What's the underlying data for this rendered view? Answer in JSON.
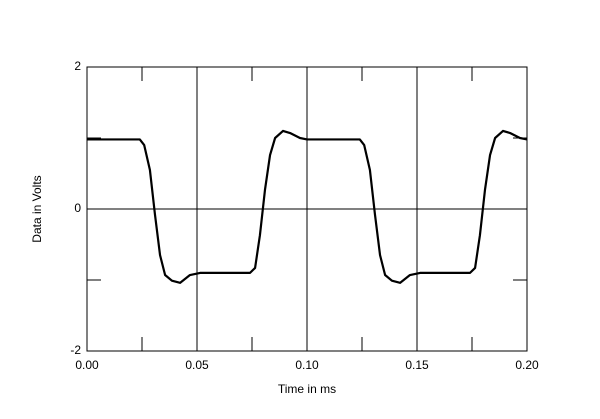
{
  "chart_data": {
    "type": "line",
    "x_label": "Time in ms",
    "y_label": "Data in Volts",
    "x": [
      0.0,
      0.024,
      0.026,
      0.0286,
      0.0309,
      0.0332,
      0.0355,
      0.0386,
      0.0423,
      0.0468,
      0.0514,
      0.0741,
      0.0764,
      0.0786,
      0.0809,
      0.0832,
      0.0855,
      0.0891,
      0.0923,
      0.0968,
      0.1,
      0.124,
      0.126,
      0.1286,
      0.1309,
      0.1332,
      0.1355,
      0.1386,
      0.1423,
      0.1468,
      0.1514,
      0.1741,
      0.1764,
      0.1786,
      0.1809,
      0.1832,
      0.1855,
      0.1891,
      0.1923,
      0.1968,
      0.2
    ],
    "series": [
      {
        "color": "#000000",
        "values": [
          0.98,
          0.98,
          0.9,
          0.55,
          -0.08,
          -0.65,
          -0.93,
          -1.01,
          -1.04,
          -0.93,
          -0.9,
          -0.9,
          -0.83,
          -0.37,
          0.27,
          0.76,
          1.0,
          1.1,
          1.07,
          1.0,
          0.98,
          0.98,
          0.9,
          0.55,
          -0.08,
          -0.65,
          -0.93,
          -1.01,
          -1.04,
          -0.93,
          -0.9,
          -0.9,
          -0.83,
          -0.37,
          0.27,
          0.76,
          1.0,
          1.1,
          1.07,
          1.0,
          0.98
        ]
      }
    ],
    "xlim": [
      0,
      0.2
    ],
    "xticks": [
      {
        "value": 0,
        "label": "0.00"
      },
      0.05,
      {
        "value": 0.1,
        "label": "0.10"
      },
      0.15,
      {
        "value": 0.2,
        "label": "0.20"
      }
    ],
    "xminorticks": [
      0.025,
      0.075,
      0.125,
      0.175
    ],
    "ylim": [
      -2,
      2
    ],
    "yticks": [
      -2,
      0,
      2
    ],
    "yminorticks": [
      -1,
      1
    ],
    "grid": true
  }
}
